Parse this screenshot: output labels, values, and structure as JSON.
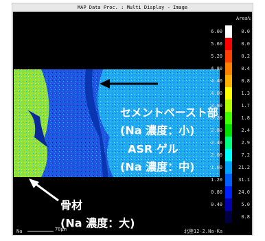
{
  "window": {
    "title": "MAP Data Proc. : Multi Display - Image"
  },
  "colorbar": {
    "area_header": "Area%",
    "labels": [
      "6.00",
      "5.60",
      "5.20",
      "4.80",
      "4.40",
      "4.00",
      "3.60",
      "3.20",
      "2.80",
      "2.40",
      "2.00",
      "1.60",
      "1.20",
      "0.80",
      "0.40"
    ],
    "area_values": [
      "0.0",
      "0.0",
      "0.2",
      "0.4",
      "0.8",
      "1.3",
      "1.7",
      "1.8",
      "2.4",
      "2.9",
      "7.2",
      "21.2",
      "31.1",
      "24.0",
      "5.0",
      "0.8"
    ],
    "colors": [
      "#ffffff",
      "#ff0000",
      "#ff4000",
      "#ff8000",
      "#ffb000",
      "#ffff00",
      "#b0ff00",
      "#40ff00",
      "#00e000",
      "#00ff80",
      "#00ffff",
      "#00a0ff",
      "#0060ff",
      "#0020ff",
      "#0000b0",
      "#000040"
    ]
  },
  "footer": {
    "element": "Na",
    "scale": "70µm",
    "sample": "北陸12-2.Na-Ka"
  },
  "annotations": {
    "paste": "セメントペースト部",
    "paste_level": "(Na 濃度：小)",
    "gel": "ASR ゲル",
    "gel_level": "(Na 濃度：中)",
    "aggregate": "骨材",
    "aggregate_level": "(Na 濃度：大)"
  }
}
